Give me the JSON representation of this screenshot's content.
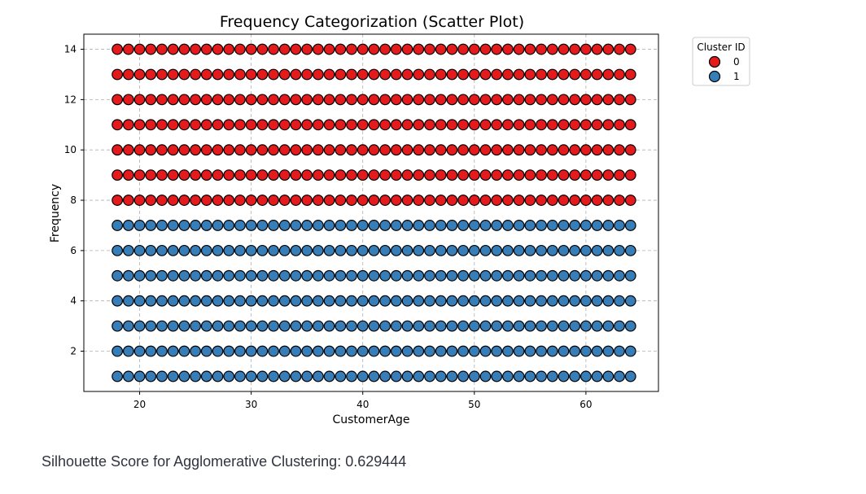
{
  "chart_data": {
    "type": "scatter",
    "title": "Frequency Categorization (Scatter Plot)",
    "xlabel": "CustomerAge",
    "ylabel": "Frequency",
    "xlim": [
      15,
      66.5
    ],
    "ylim": [
      0.4,
      14.6
    ],
    "x_ticks": [
      20,
      30,
      40,
      50,
      60
    ],
    "y_ticks": [
      2,
      4,
      6,
      8,
      10,
      12,
      14
    ],
    "grid": true,
    "legend_position": "outside-top-right",
    "legend": {
      "title": "Cluster ID",
      "entries": [
        {
          "label": "0",
          "color": "#e41a1c"
        },
        {
          "label": "1",
          "color": "#377eb8"
        }
      ]
    },
    "x_values": [
      18,
      19,
      20,
      21,
      22,
      23,
      24,
      25,
      26,
      27,
      28,
      29,
      30,
      31,
      32,
      33,
      34,
      35,
      36,
      37,
      38,
      39,
      40,
      41,
      42,
      43,
      44,
      45,
      46,
      47,
      48,
      49,
      50,
      51,
      52,
      53,
      54,
      55,
      56,
      57,
      58,
      59,
      60,
      61,
      62,
      63,
      64
    ],
    "series": [
      {
        "name": "0",
        "color": "#e41a1c",
        "frequencies": [
          8,
          9,
          10,
          11,
          12,
          13,
          14
        ]
      },
      {
        "name": "1",
        "color": "#377eb8",
        "frequencies": [
          1,
          2,
          3,
          4,
          5,
          6,
          7
        ]
      }
    ]
  },
  "footer": {
    "silhouette_text": "Silhouette Score for Agglomerative Clustering: 0.629444"
  }
}
